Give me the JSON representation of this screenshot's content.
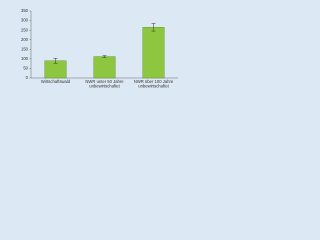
{
  "chart_data": {
    "type": "bar",
    "categories": [
      "Wirtschaftswald",
      "NWR unter 50 Jahre\nunbewirtschaftet",
      "NWR über 100 Jahre\nunbewirtschaftet"
    ],
    "values": [
      90,
      112,
      265
    ],
    "errors": [
      13,
      5,
      20
    ],
    "color": "#8dc63f",
    "ylim": [
      0,
      350
    ],
    "yticks": [
      0,
      50,
      100,
      150,
      200,
      250,
      300,
      350
    ],
    "grid": false
  }
}
